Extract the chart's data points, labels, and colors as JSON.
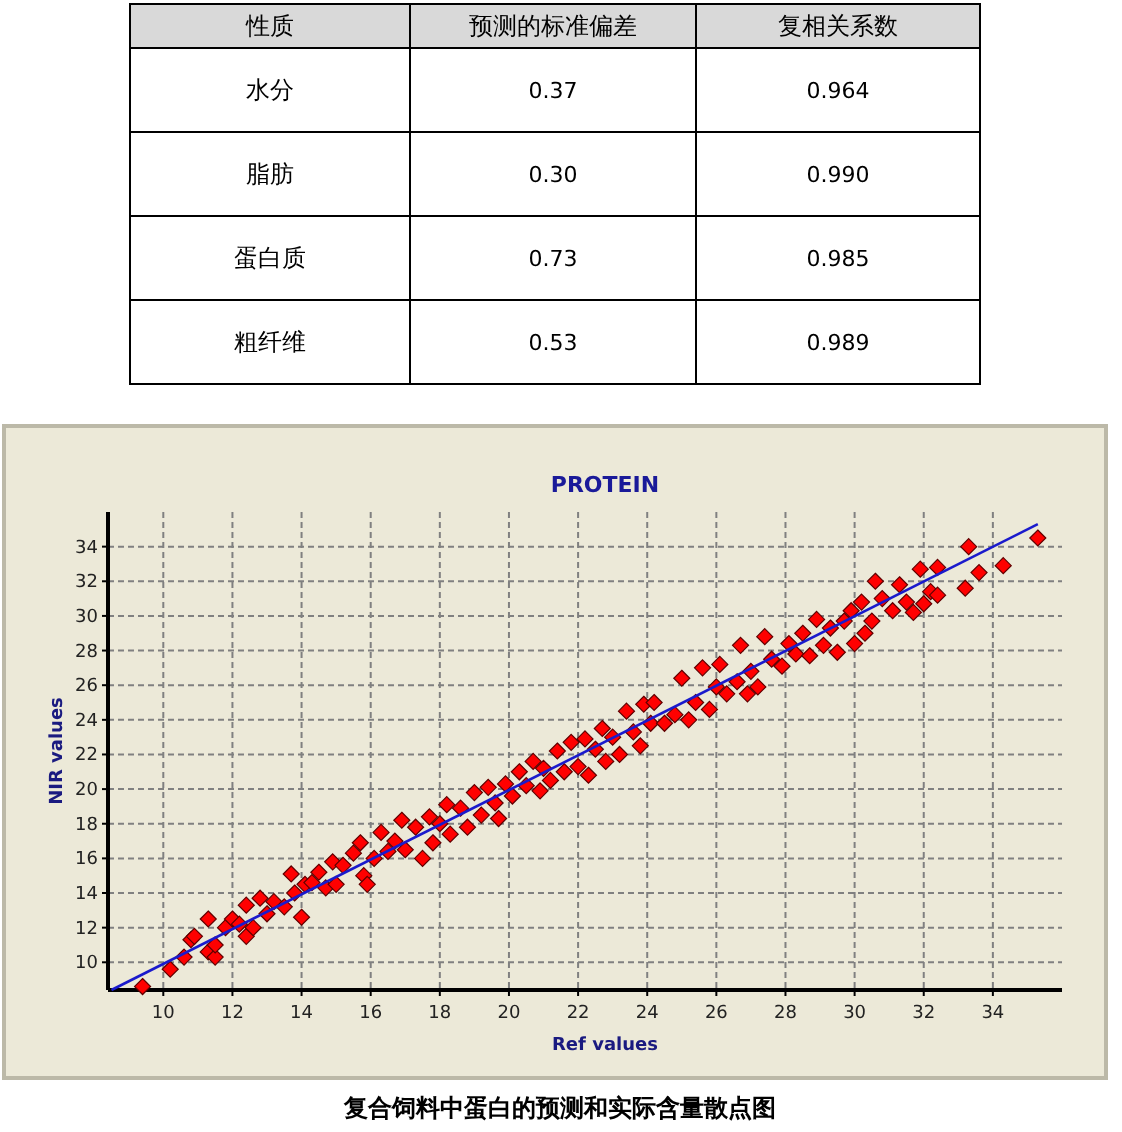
{
  "chart_data": [
    {
      "type": "other",
      "ylabel": "性质",
      "categories": [
        "水分",
        "脂肪",
        "蛋白质",
        "粗纤维"
      ],
      "series": [
        {
          "name": "预测的标准偏差",
          "values": [
            0.37,
            0.3,
            0.73,
            0.53
          ],
          "value_labels": [
            "0.37",
            "0.30",
            "0.73",
            "0.53"
          ]
        },
        {
          "name": "复相关系数",
          "values": [
            0.964,
            0.99,
            0.985,
            0.989
          ],
          "value_labels": [
            "0.964",
            "0.990",
            "0.985",
            "0.989"
          ]
        }
      ]
    },
    {
      "type": "scatter",
      "title": "PROTEIN",
      "xlabel": "Ref values",
      "ylabel": "NIR values",
      "annotations": [
        "复合饲料中蛋白的预测和实际含量散点图"
      ],
      "xlim": [
        8.4,
        36
      ],
      "ylim": [
        8.4,
        36
      ],
      "xticks": [
        10,
        12,
        14,
        16,
        18,
        20,
        22,
        24,
        26,
        28,
        30,
        32,
        34
      ],
      "yticks": [
        10,
        12,
        14,
        16,
        18,
        20,
        22,
        24,
        26,
        28,
        30,
        32,
        34
      ],
      "grid": true,
      "series": [
        {
          "color": "#ff0000",
          "marker": "diamond",
          "x": [
            9.4,
            10.2,
            10.6,
            10.8,
            10.9,
            11.3,
            11.3,
            11.5,
            11.5,
            11.8,
            12.0,
            12.2,
            12.4,
            12.4,
            12.6,
            12.8,
            13.0,
            13.2,
            13.5,
            13.7,
            13.8,
            14.0,
            14.1,
            14.3,
            14.5,
            14.7,
            14.9,
            15.0,
            15.2,
            15.5,
            15.7,
            15.8,
            15.9,
            16.1,
            16.3,
            16.5,
            16.7,
            16.9,
            17.0,
            17.3,
            17.5,
            17.7,
            17.8,
            18.0,
            18.2,
            18.3,
            18.6,
            18.8,
            19.0,
            19.2,
            19.4,
            19.6,
            19.7,
            19.9,
            20.1,
            20.3,
            20.5,
            20.7,
            20.9,
            21.0,
            21.2,
            21.4,
            21.6,
            21.8,
            22.0,
            22.2,
            22.3,
            22.5,
            22.7,
            22.8,
            23.0,
            23.2,
            23.4,
            23.6,
            23.8,
            23.9,
            24.1,
            24.2,
            24.5,
            24.8,
            25.0,
            25.2,
            25.4,
            25.6,
            25.8,
            26.0,
            26.1,
            26.3,
            26.6,
            26.7,
            26.9,
            27.0,
            27.2,
            27.4,
            27.6,
            27.9,
            28.1,
            28.3,
            28.5,
            28.7,
            28.9,
            29.1,
            29.3,
            29.5,
            29.7,
            29.9,
            30.0,
            30.2,
            30.3,
            30.5,
            30.6,
            30.8,
            31.1,
            31.3,
            31.5,
            31.7,
            31.9,
            32.0,
            32.2,
            32.4,
            32.4,
            33.2,
            33.3,
            33.6,
            34.3,
            35.3
          ],
          "values": [
            8.6,
            9.6,
            10.3,
            11.3,
            11.5,
            12.5,
            10.6,
            10.3,
            11.0,
            12.0,
            12.5,
            12.2,
            13.3,
            11.5,
            12.0,
            13.7,
            12.8,
            13.5,
            13.2,
            15.1,
            14.0,
            12.6,
            14.5,
            14.6,
            15.2,
            14.3,
            15.8,
            14.5,
            15.6,
            16.3,
            16.9,
            15.0,
            14.5,
            16.0,
            17.5,
            16.4,
            17.0,
            18.2,
            16.5,
            17.8,
            16.0,
            18.4,
            16.9,
            18.0,
            19.1,
            17.4,
            18.9,
            17.8,
            19.8,
            18.5,
            20.1,
            19.2,
            18.3,
            20.3,
            19.6,
            21.0,
            20.2,
            21.6,
            19.9,
            21.2,
            20.5,
            22.2,
            21.0,
            22.7,
            21.3,
            22.9,
            20.8,
            22.3,
            23.5,
            21.6,
            23.0,
            22.0,
            24.5,
            23.3,
            22.5,
            24.9,
            23.8,
            25.0,
            23.8,
            24.3,
            26.4,
            24.0,
            25.0,
            27.0,
            24.6,
            25.9,
            27.2,
            25.5,
            26.2,
            28.3,
            25.5,
            26.8,
            25.9,
            28.8,
            27.5,
            27.1,
            28.4,
            27.8,
            29.0,
            27.7,
            29.8,
            28.3,
            29.3,
            27.9,
            29.7,
            30.3,
            28.4,
            30.8,
            29.0,
            29.7,
            32.0,
            31.0,
            30.3,
            31.8,
            30.8,
            30.2,
            32.7,
            30.7,
            31.4,
            32.8,
            31.2,
            31.6,
            34.0,
            32.5,
            32.9,
            34.5
          ]
        },
        {
          "type": "line",
          "color": "#1a1acc",
          "x": [
            8.5,
            35.3
          ],
          "values": [
            8.4,
            35.3
          ]
        }
      ]
    }
  ]
}
